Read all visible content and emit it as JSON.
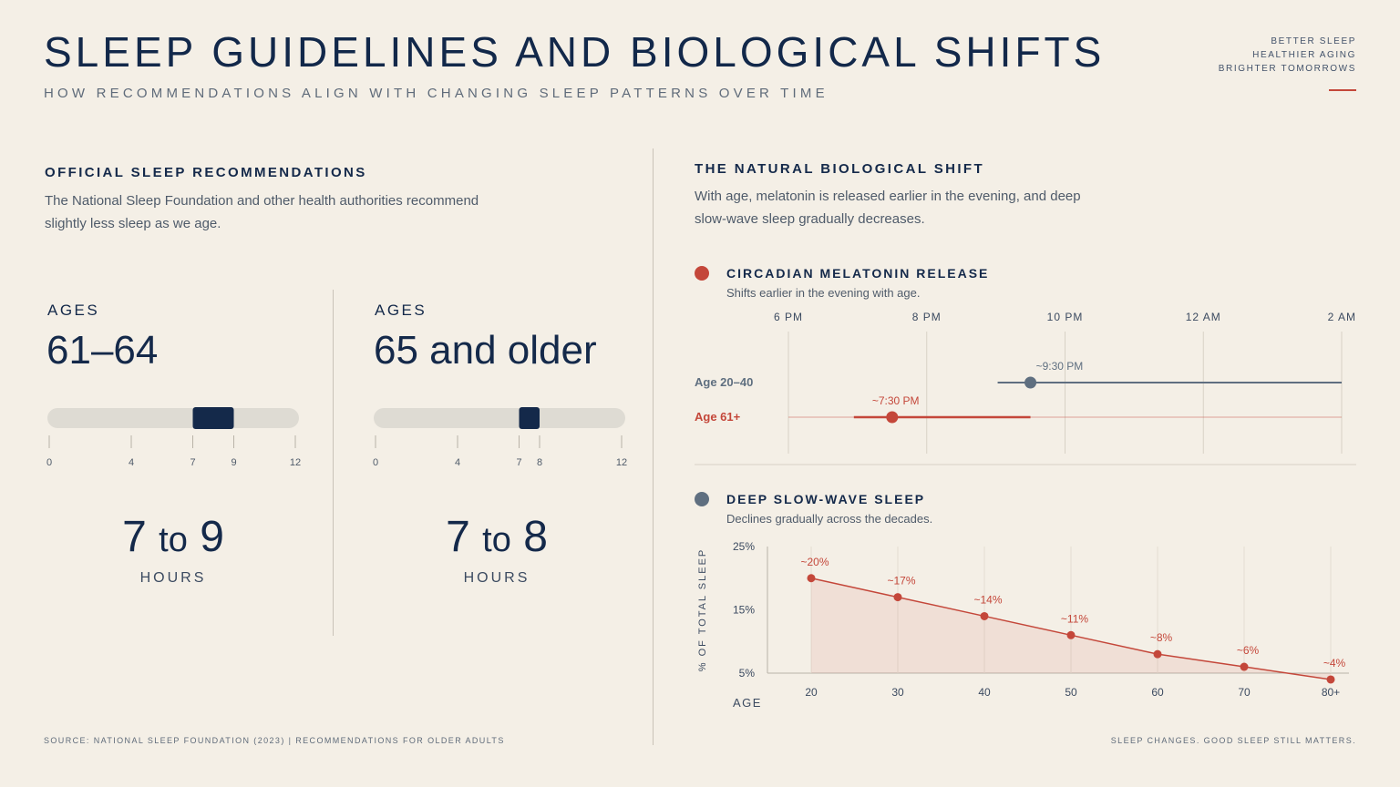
{
  "header": {
    "title": "SLEEP GUIDELINES AND BIOLOGICAL SHIFTS",
    "subtitle": "HOW RECOMMENDATIONS ALIGN WITH CHANGING SLEEP PATTERNS OVER TIME",
    "tagline": [
      "BETTER SLEEP",
      "HEALTHIER AGING",
      "BRIGHTER TOMORROWS"
    ]
  },
  "left": {
    "heading": "OFFICIAL SLEEP RECOMMENDATIONS",
    "description": "The National Sleep Foundation and other health authorities recommend slightly less sleep as we age.",
    "ages_label": "AGES",
    "hours_label": "HOURS",
    "groups": [
      {
        "ages": "61–64",
        "min": 7,
        "max": 9,
        "hours_from": "7",
        "hours_to": "9",
        "to": "to"
      },
      {
        "ages": "65 and older",
        "min": 7,
        "max": 8,
        "hours_from": "7",
        "hours_to": "8",
        "to": "to"
      }
    ],
    "scale_ticks": [
      0,
      4,
      7,
      9,
      12
    ],
    "scale_ticks_2": [
      0,
      4,
      7,
      8,
      12
    ]
  },
  "right": {
    "heading": "THE NATURAL BIOLOGICAL SHIFT",
    "description": "With age, melatonin is released earlier in the evening, and deep slow-wave sleep gradually decreases."
  },
  "footer": {
    "source": "SOURCE: NATIONAL SLEEP FOUNDATION (2023)   |   RECOMMENDATIONS FOR OLDER ADULTS",
    "closing": "SLEEP CHANGES. GOOD SLEEP STILL MATTERS."
  },
  "colors": {
    "navy": "#14294a",
    "red": "#c4473a",
    "slate": "#5f6f80",
    "track": "#dedbd3",
    "background": "#f4efe6"
  },
  "chart_data": [
    {
      "type": "timeline",
      "title": "CIRCADIAN MELATONIN RELEASE",
      "subtitle": "Shifts earlier in the evening with age.",
      "x_ticks": [
        "6 PM",
        "8 PM",
        "10 PM",
        "12 AM",
        "2 AM"
      ],
      "x_range_hours": [
        18,
        26
      ],
      "series": [
        {
          "name": "Age 20–40",
          "onset": 21.5,
          "onset_label": "~9:30 PM",
          "color": "#5f6f80"
        },
        {
          "name": "Age 61+",
          "onset": 19.5,
          "onset_label": "~7:30 PM",
          "color": "#c4473a"
        }
      ]
    },
    {
      "type": "area",
      "title": "DEEP SLOW-WAVE SLEEP",
      "subtitle": "Declines gradually across the decades.",
      "xlabel": "AGE",
      "ylabel": "% OF TOTAL SLEEP",
      "ylim": [
        5,
        25
      ],
      "y_ticks": [
        "25%",
        "15%",
        "5%"
      ],
      "categories": [
        "20",
        "30",
        "40",
        "50",
        "60",
        "70",
        "80+"
      ],
      "values": [
        20,
        17,
        14,
        11,
        8,
        6,
        4
      ],
      "value_labels": [
        "~20%",
        "~17%",
        "~14%",
        "~11%",
        "~8%",
        "~6%",
        "~4%"
      ]
    }
  ]
}
